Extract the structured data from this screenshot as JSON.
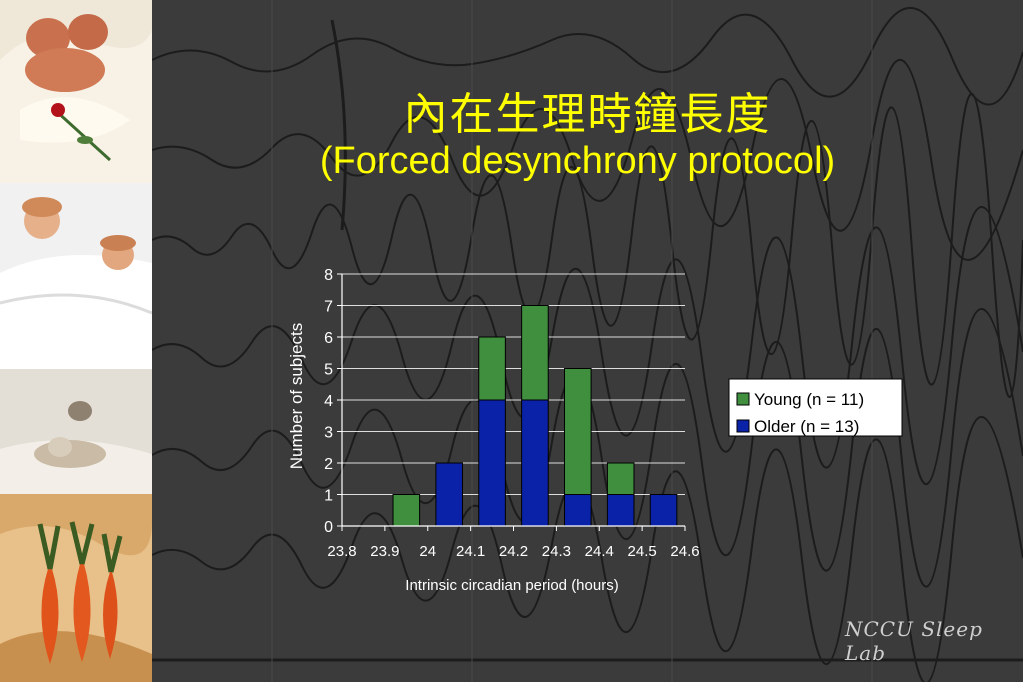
{
  "slide": {
    "title": "內在生理時鐘長度",
    "subtitle": "(Forced desynchrony protocol)",
    "watermark": "NCCU Sleep Lab"
  },
  "chart_data": {
    "type": "bar",
    "stacked": true,
    "x_tick_labels": [
      "23.8",
      "23.9",
      "24",
      "24.1",
      "24.2",
      "24.3",
      "24.4",
      "24.5",
      "24.6"
    ],
    "bins": [
      "23.9",
      "24",
      "24.1",
      "24.2",
      "24.3",
      "24.4",
      "24.5"
    ],
    "series": [
      {
        "name": "Older (n = 13)",
        "color": "#0a22a8",
        "values": [
          0,
          2,
          4,
          4,
          1,
          1,
          1
        ]
      },
      {
        "name": "Young (n = 11)",
        "color": "#3f8f3f",
        "values": [
          1,
          0,
          2,
          3,
          4,
          1,
          0
        ]
      }
    ],
    "xlabel": "Intrinsic circadian period (hours)",
    "ylabel": "Number of subjects",
    "ylim": [
      0,
      8
    ],
    "y_ticks": [
      0,
      1,
      2,
      3,
      4,
      5,
      6,
      7,
      8
    ],
    "grid": true,
    "legend_position": "right",
    "legend_order": [
      "Young (n = 11)",
      "Older (n = 13)"
    ]
  }
}
